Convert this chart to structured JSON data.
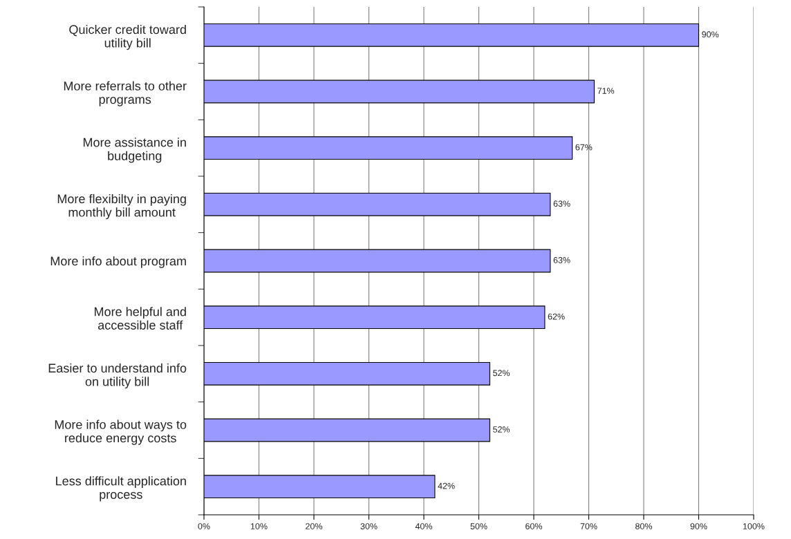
{
  "chart_data": {
    "type": "bar",
    "orientation": "horizontal",
    "categories": [
      "Quicker credit toward\nutility bill",
      "More referrals to other\nprograms",
      "More assistance in\nbudgeting",
      "More flexibilty in paying\nmonthly bill amount",
      "More info about program",
      "More helpful and\naccessible staff",
      "Easier to understand info\non utility bill",
      "More info about ways to\nreduce energy costs",
      "Less difficult application\nprocess"
    ],
    "values": [
      90,
      71,
      67,
      63,
      63,
      62,
      52,
      52,
      42
    ],
    "value_labels": [
      "90%",
      "71%",
      "67%",
      "63%",
      "63%",
      "62%",
      "52%",
      "52%",
      "42%"
    ],
    "color": "#9999ff",
    "xlim": [
      0,
      100
    ],
    "xticks": [
      {
        "value": 0,
        "label": "0%"
      },
      {
        "value": 10,
        "label": "10%"
      },
      {
        "value": 20,
        "label": "20%"
      },
      {
        "value": 30,
        "label": "30%"
      },
      {
        "value": 40,
        "label": "40%"
      },
      {
        "value": 50,
        "label": "50%"
      },
      {
        "value": 60,
        "label": "60%"
      },
      {
        "value": 70,
        "label": "70%"
      },
      {
        "value": 80,
        "label": "80%"
      },
      {
        "value": 90,
        "label": "90%"
      },
      {
        "value": 100,
        "label": "100%"
      }
    ],
    "grid": "x",
    "legend": false
  }
}
